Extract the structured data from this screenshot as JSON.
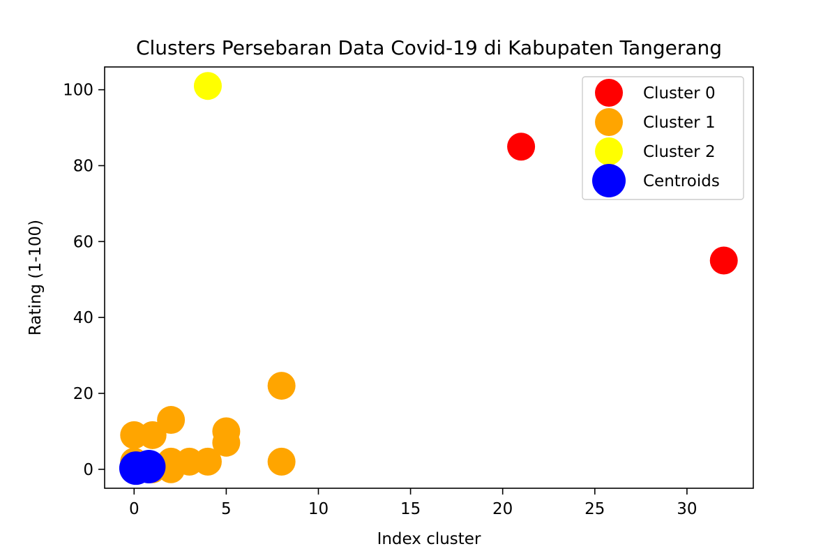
{
  "chart_data": {
    "type": "scatter",
    "title": "Clusters Persebaran Data Covid-19 di Kabupaten Tangerang",
    "xlabel": "Index cluster",
    "ylabel": "Rating  (1-100)",
    "xlim": [
      -1.6,
      33.6
    ],
    "ylim": [
      -5,
      106
    ],
    "xticks": [
      0,
      5,
      10,
      15,
      20,
      25,
      30
    ],
    "yticks": [
      0,
      20,
      40,
      60,
      80,
      100
    ],
    "grid": false,
    "legend_position": "top-right",
    "series": [
      {
        "name": "Cluster 0",
        "color": "#ff0000",
        "points": [
          [
            21,
            85
          ],
          [
            32,
            55
          ]
        ]
      },
      {
        "name": "Cluster 1",
        "color": "#ffa500",
        "points": [
          [
            0,
            9
          ],
          [
            0,
            2
          ],
          [
            0,
            1
          ],
          [
            0,
            0
          ],
          [
            0.5,
            1
          ],
          [
            1,
            9
          ],
          [
            1,
            0
          ],
          [
            2,
            13
          ],
          [
            2,
            2
          ],
          [
            2,
            0
          ],
          [
            3,
            2
          ],
          [
            4,
            2
          ],
          [
            5,
            10
          ],
          [
            5,
            7
          ],
          [
            8,
            22
          ],
          [
            8,
            2
          ]
        ]
      },
      {
        "name": "Cluster 2",
        "color": "#ffff00",
        "points": [
          [
            4,
            101
          ]
        ]
      },
      {
        "name": "Centroids",
        "color": "#0000ff",
        "points": [
          [
            0.1,
            0.3
          ],
          [
            0.8,
            0.7
          ]
        ]
      }
    ]
  }
}
